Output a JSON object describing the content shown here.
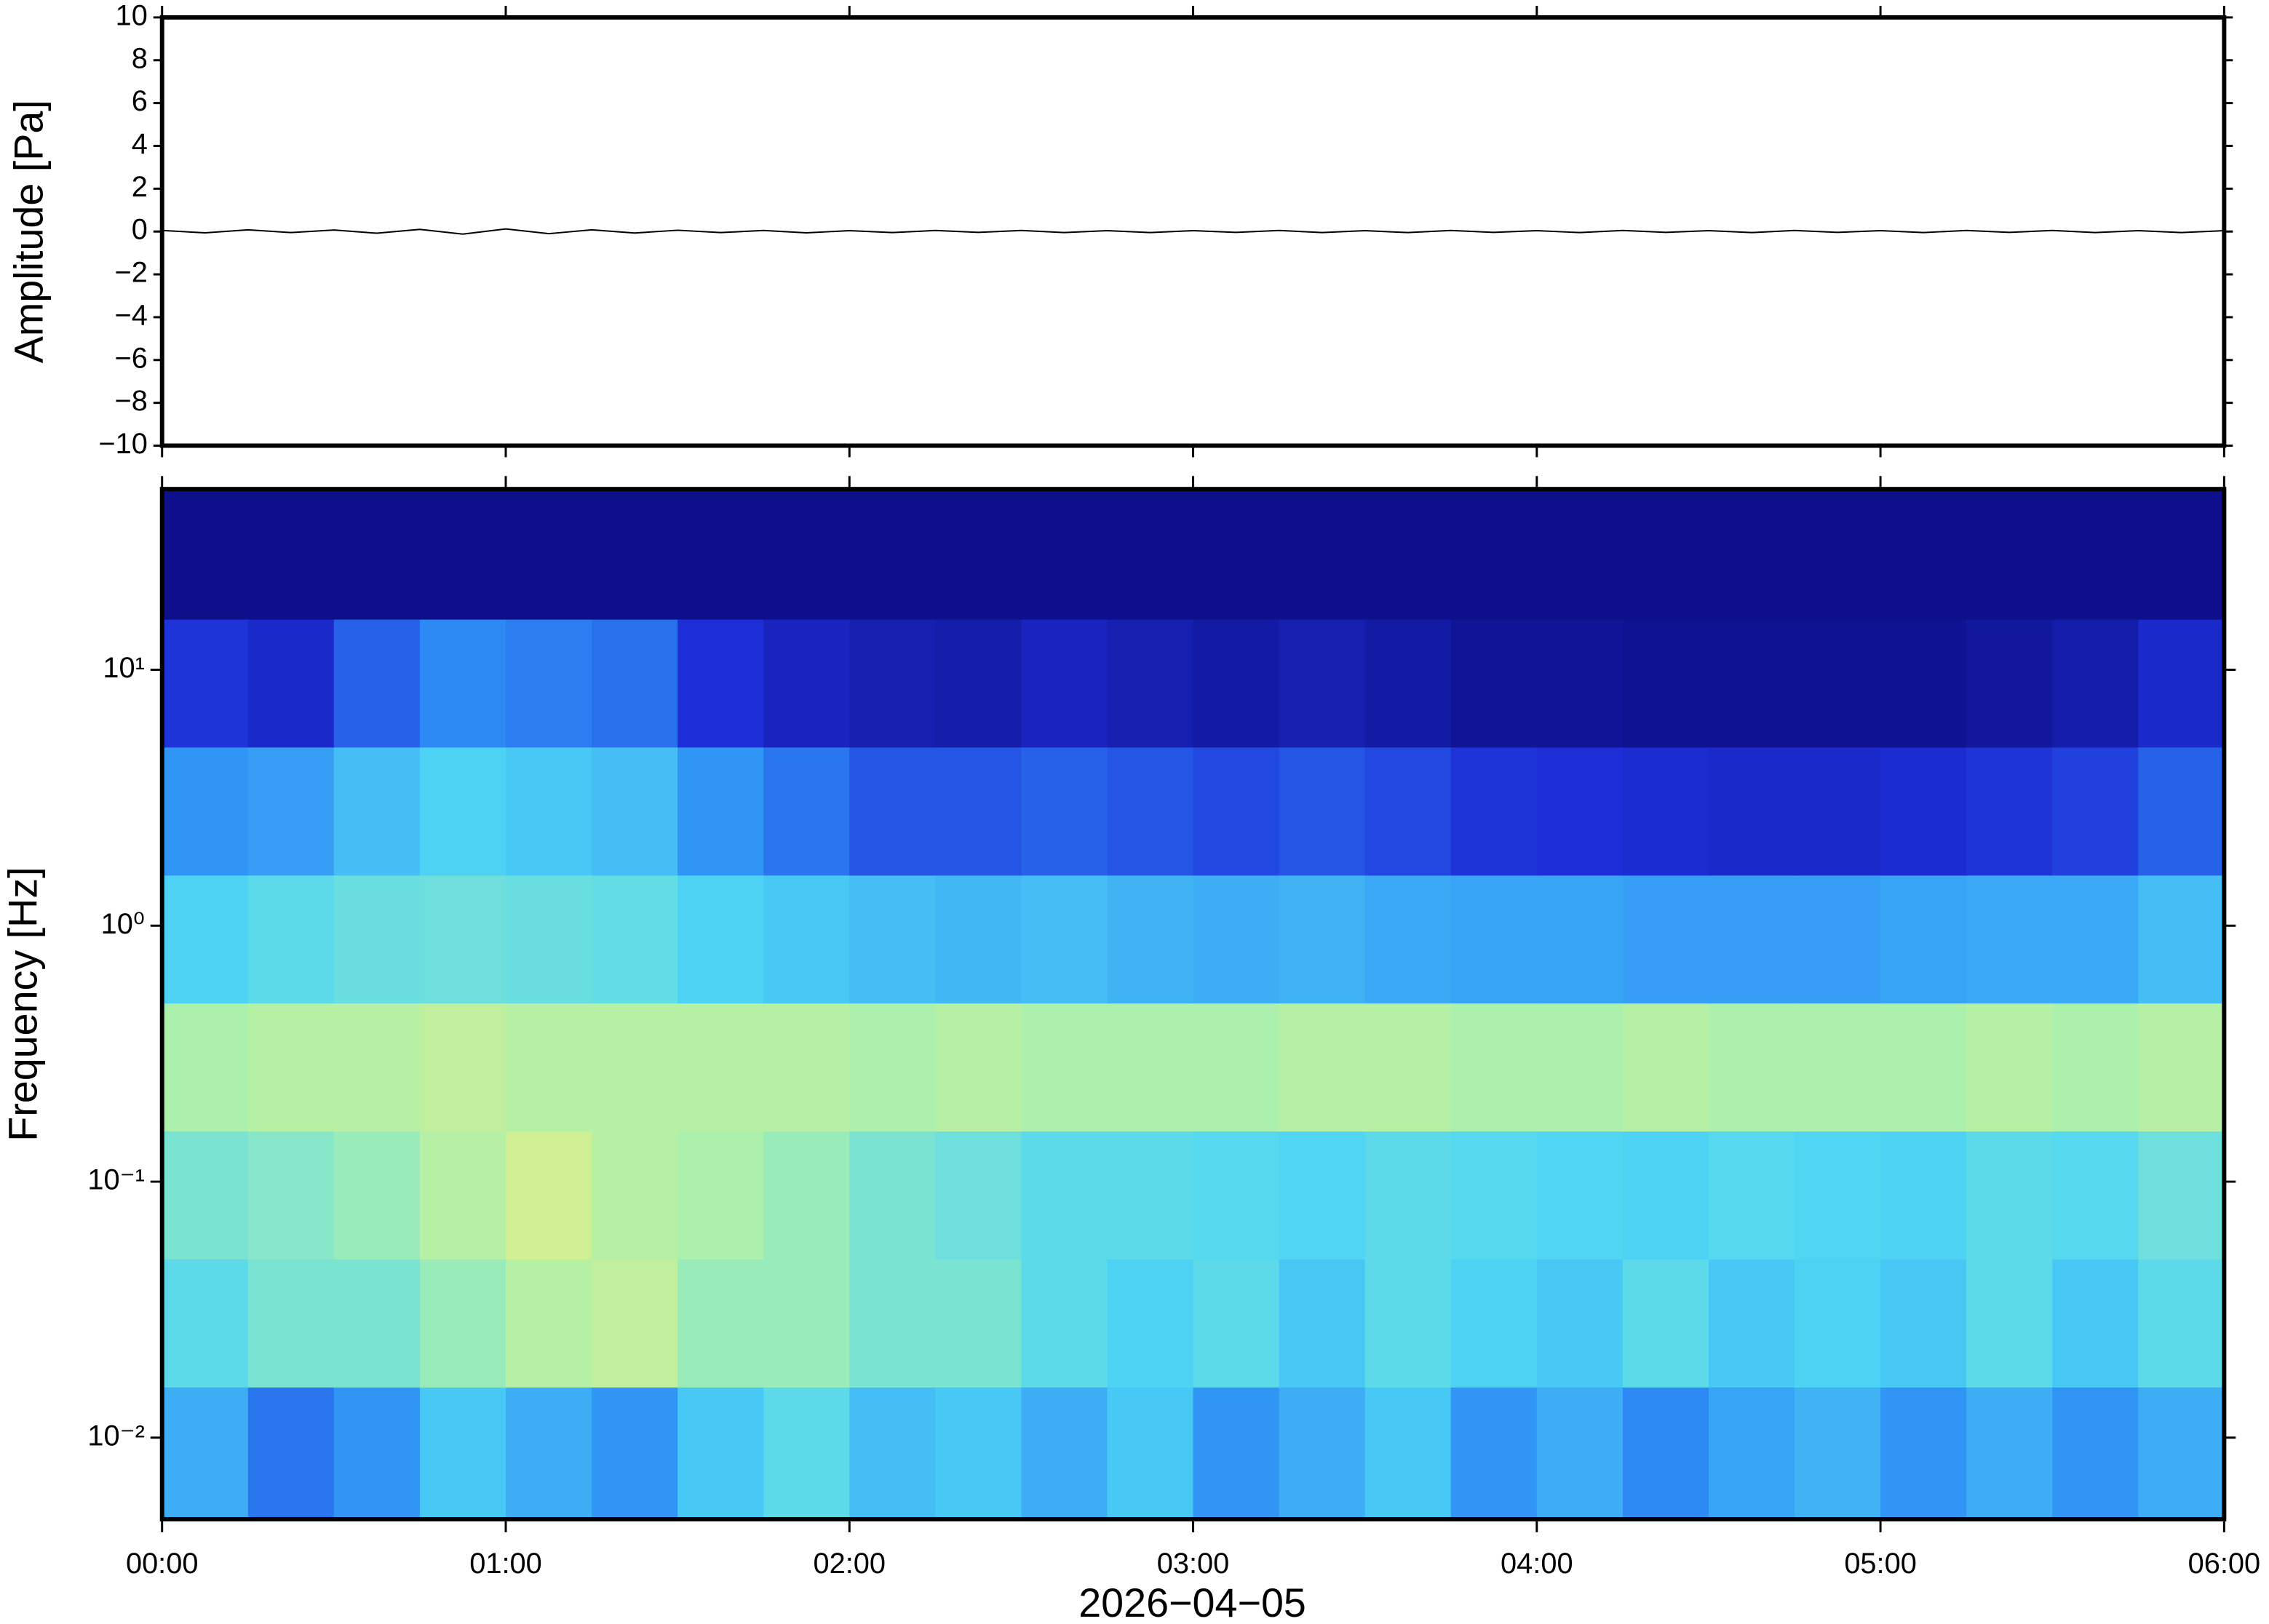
{
  "chart_data": [
    {
      "type": "line",
      "ylabel": "Amplitude [Pa]",
      "color": "#000000",
      "ylim": [
        -10,
        10
      ],
      "yticks": [
        {
          "value": -10,
          "label": "−10"
        },
        {
          "value": -8,
          "label": "−8"
        },
        {
          "value": -6,
          "label": "−6"
        },
        {
          "value": -4,
          "label": "−4"
        },
        {
          "value": -2,
          "label": "−2"
        },
        0,
        2,
        4,
        6,
        8,
        10
      ],
      "xlim": [
        0,
        6
      ],
      "x": [
        0,
        0.125,
        0.25,
        0.375,
        0.5,
        0.625,
        0.75,
        0.875,
        1,
        1.125,
        1.25,
        1.375,
        1.5,
        1.625,
        1.75,
        1.875,
        2,
        2.125,
        2.25,
        2.375,
        2.5,
        2.625,
        2.75,
        2.875,
        3,
        3.125,
        3.25,
        3.375,
        3.5,
        3.625,
        3.75,
        3.875,
        4,
        4.125,
        4.25,
        4.375,
        4.5,
        4.625,
        4.75,
        4.875,
        5,
        5.125,
        5.25,
        5.375,
        5.5,
        5.625,
        5.75,
        5.875,
        6
      ],
      "values": [
        0.05,
        -0.06,
        0.08,
        -0.05,
        0.07,
        -0.08,
        0.1,
        -0.12,
        0.12,
        -0.1,
        0.08,
        -0.07,
        0.06,
        -0.05,
        0.05,
        -0.06,
        0.04,
        -0.05,
        0.05,
        -0.04,
        0.05,
        -0.05,
        0.04,
        -0.05,
        0.04,
        -0.04,
        0.05,
        -0.05,
        0.04,
        -0.05,
        0.05,
        -0.04,
        0.04,
        -0.05,
        0.05,
        -0.04,
        0.04,
        -0.05,
        0.05,
        -0.04,
        0.04,
        -0.05,
        0.05,
        -0.04,
        0.05,
        -0.05,
        0.04,
        -0.05,
        0.04
      ]
    },
    {
      "type": "spectrogram",
      "ylabel": "Frequency [Hz]",
      "xlabel": "2026−04−05",
      "log_y": true,
      "xlim": [
        0,
        6
      ],
      "xticks": [
        {
          "value": 0,
          "label": "00:00"
        },
        {
          "value": 1,
          "label": "01:00"
        },
        {
          "value": 2,
          "label": "02:00"
        },
        {
          "value": 3,
          "label": "03:00"
        },
        {
          "value": 4,
          "label": "04:00"
        },
        {
          "value": 5,
          "label": "05:00"
        },
        {
          "value": 6,
          "label": "06:00"
        }
      ],
      "ylim": [
        0.0048,
        50.8
      ],
      "yticks": [
        {
          "value": 0.01,
          "label": "10⁻²"
        },
        {
          "value": 0.1,
          "label": "10⁻¹"
        },
        {
          "value": 1,
          "label": "10⁰"
        },
        {
          "value": 10,
          "label": "10¹"
        }
      ],
      "y_edges": [
        0.0048,
        0.0158,
        0.05,
        0.158,
        0.5,
        1.58,
        5,
        15.8,
        50.8
      ],
      "colormap": [
        "#0b0b7e",
        "#1d2fd8",
        "#2e8ef5",
        "#4fd6f4",
        "#a6f0b0",
        "#f2ee7a",
        "#f5a04a",
        "#e03020"
      ],
      "z": [
        [
          0.35,
          0.25,
          0.3,
          0.4,
          0.35,
          0.3,
          0.4,
          0.45,
          0.38,
          0.4,
          0.35,
          0.4,
          0.3,
          0.35,
          0.4,
          0.3,
          0.35,
          0.28,
          0.33,
          0.36,
          0.3,
          0.35,
          0.3,
          0.35
        ],
        [
          0.45,
          0.5,
          0.5,
          0.55,
          0.6,
          0.62,
          0.55,
          0.55,
          0.5,
          0.5,
          0.45,
          0.42,
          0.45,
          0.4,
          0.45,
          0.42,
          0.4,
          0.45,
          0.4,
          0.42,
          0.4,
          0.45,
          0.4,
          0.45
        ],
        [
          0.5,
          0.52,
          0.55,
          0.6,
          0.65,
          0.6,
          0.58,
          0.55,
          0.5,
          0.48,
          0.45,
          0.45,
          0.44,
          0.43,
          0.45,
          0.44,
          0.43,
          0.42,
          0.44,
          0.43,
          0.42,
          0.45,
          0.44,
          0.48
        ],
        [
          0.58,
          0.6,
          0.6,
          0.62,
          0.6,
          0.6,
          0.6,
          0.6,
          0.58,
          0.6,
          0.58,
          0.58,
          0.58,
          0.6,
          0.6,
          0.58,
          0.58,
          0.6,
          0.58,
          0.58,
          0.58,
          0.6,
          0.58,
          0.6
        ],
        [
          0.42,
          0.45,
          0.47,
          0.48,
          0.47,
          0.46,
          0.42,
          0.4,
          0.38,
          0.37,
          0.38,
          0.36,
          0.35,
          0.36,
          0.34,
          0.33,
          0.33,
          0.32,
          0.32,
          0.32,
          0.33,
          0.34,
          0.34,
          0.38
        ],
        [
          0.3,
          0.32,
          0.38,
          0.42,
          0.4,
          0.38,
          0.3,
          0.25,
          0.2,
          0.2,
          0.22,
          0.2,
          0.18,
          0.2,
          0.18,
          0.15,
          0.14,
          0.13,
          0.12,
          0.12,
          0.13,
          0.15,
          0.17,
          0.22
        ],
        [
          0.15,
          0.12,
          0.22,
          0.28,
          0.26,
          0.24,
          0.14,
          0.1,
          0.08,
          0.07,
          0.1,
          0.08,
          0.06,
          0.08,
          0.06,
          0.04,
          0.04,
          0.03,
          0.03,
          0.03,
          0.03,
          0.05,
          0.07,
          0.12
        ],
        [
          0.02,
          0.02,
          0.02,
          0.02,
          0.02,
          0.02,
          0.02,
          0.02,
          0.02,
          0.02,
          0.02,
          0.02,
          0.02,
          0.02,
          0.02,
          0.02,
          0.02,
          0.02,
          0.02,
          0.02,
          0.02,
          0.02,
          0.02,
          0.02
        ]
      ]
    }
  ]
}
